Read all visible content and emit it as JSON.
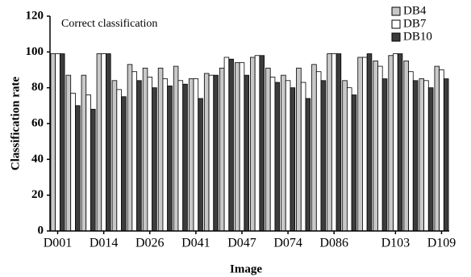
{
  "chart_data": {
    "type": "bar",
    "title": "Correct classification",
    "x_label": "Image",
    "y_label": "Classification rate",
    "categories": [
      "D001",
      null,
      null,
      "D014",
      null,
      null,
      "D026",
      null,
      null,
      "D041",
      null,
      null,
      "D047",
      null,
      null,
      "D074",
      null,
      null,
      "D086",
      null,
      null,
      null,
      "D103",
      null,
      null,
      "D109"
    ],
    "series": [
      {
        "name": "DB4",
        "color": "#c8c8c8",
        "values": [
          99,
          87,
          87,
          99,
          84,
          93,
          91,
          91,
          92,
          85,
          88,
          91,
          94,
          97,
          91,
          87,
          91,
          93,
          99,
          84,
          97,
          95,
          98,
          95,
          85,
          92
        ]
      },
      {
        "name": "DB7",
        "color": "#ffffff",
        "values": [
          99,
          77,
          76,
          99,
          79,
          89,
          86,
          85,
          84,
          85,
          87,
          97,
          94,
          98,
          86,
          84,
          83,
          89,
          99,
          80,
          97,
          92,
          99,
          89,
          84,
          90
        ]
      },
      {
        "name": "DB10",
        "color": "#3c3c3c",
        "values": [
          99,
          70,
          68,
          99,
          75,
          84,
          80,
          81,
          82,
          74,
          87,
          96,
          87,
          98,
          83,
          80,
          74,
          84,
          99,
          76,
          99,
          85,
          99,
          84,
          80,
          85
        ]
      }
    ],
    "ylim": [
      0,
      120
    ],
    "yticks": [
      0,
      20,
      40,
      60,
      80,
      100,
      120
    ],
    "legend": "top-right"
  }
}
